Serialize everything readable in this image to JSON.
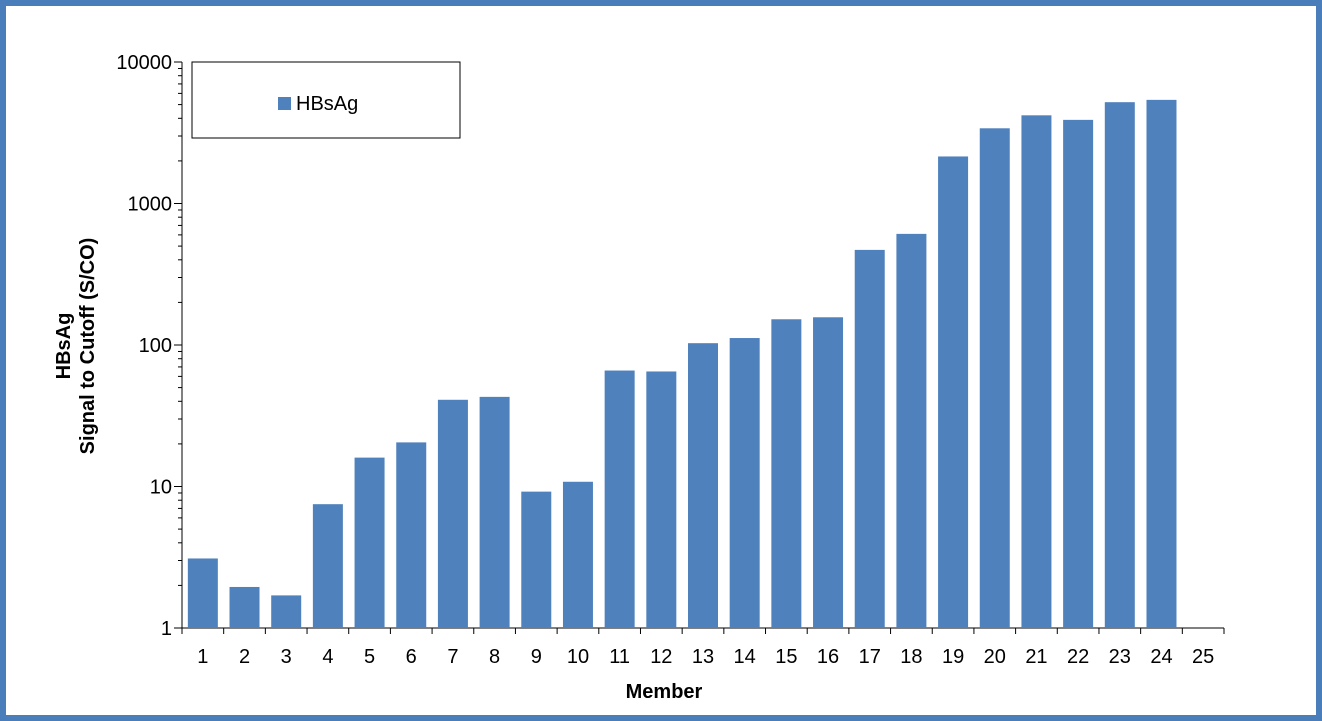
{
  "chart_data": {
    "type": "bar",
    "title": "",
    "xlabel": "Member",
    "ylabel_lines": [
      "HBsAg",
      "Signal to Cutoff (S/CO)"
    ],
    "yscale": "log",
    "ylim": [
      1,
      10000
    ],
    "y_ticks": [
      1,
      10,
      100,
      1000,
      10000
    ],
    "y_tick_labels": [
      "1",
      "10",
      "100",
      "1000",
      "10000"
    ],
    "categories": [
      "1",
      "2",
      "3",
      "4",
      "5",
      "6",
      "7",
      "8",
      "9",
      "10",
      "11",
      "12",
      "13",
      "14",
      "15",
      "16",
      "17",
      "18",
      "19",
      "20",
      "21",
      "22",
      "23",
      "24",
      "25"
    ],
    "series": [
      {
        "name": "HBsAg",
        "color": "#4f81bd",
        "values": [
          3.1,
          1.95,
          1.7,
          7.5,
          16,
          20.5,
          41,
          43,
          9.2,
          10.8,
          66,
          65,
          103,
          112,
          152,
          157,
          470,
          610,
          2150,
          3400,
          4200,
          3900,
          5200,
          5400,
          null
        ]
      }
    ],
    "legend": {
      "position": "top-left",
      "entries": [
        "HBsAg"
      ]
    },
    "grid": false,
    "colors": {
      "frame": "#4a7ebb",
      "bar": "#4f81bd",
      "axis": "#000000"
    }
  }
}
